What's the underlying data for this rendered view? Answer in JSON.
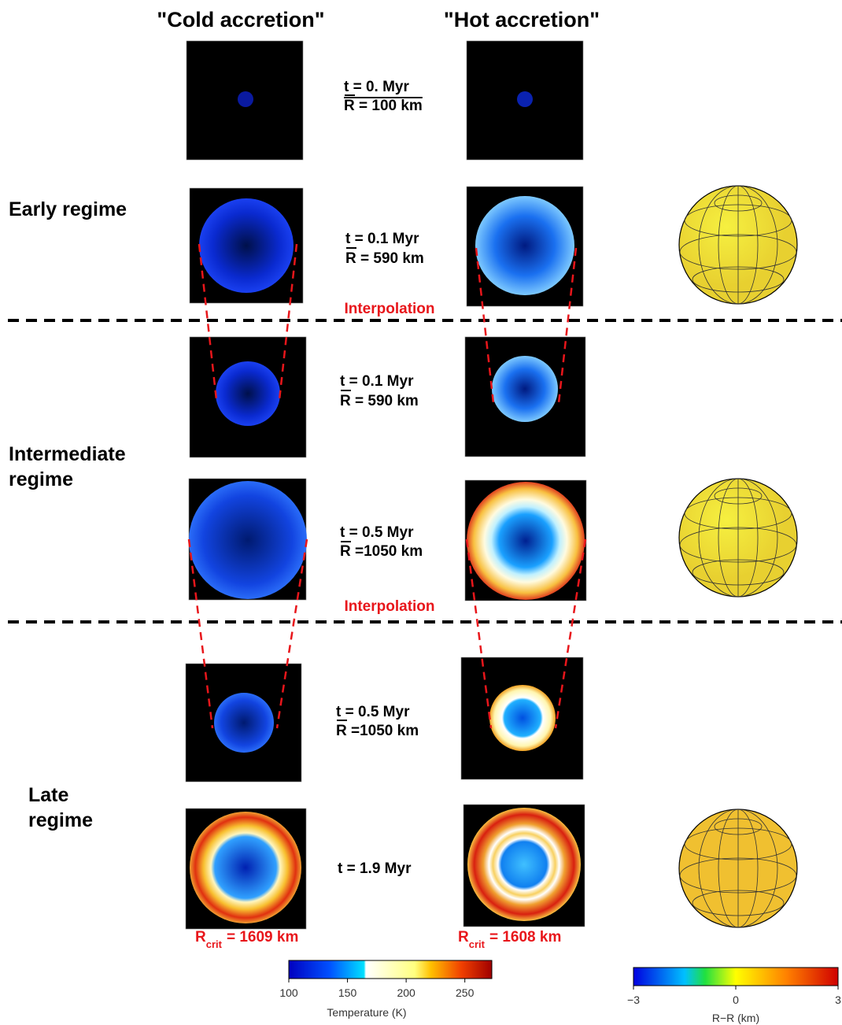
{
  "columns": [
    "\"Cold accretion\"",
    "\"Hot accretion\""
  ],
  "regimes": [
    {
      "lines": [
        "Early regime"
      ]
    },
    {
      "lines": [
        "Intermediate",
        "regime"
      ]
    },
    {
      "lines": [
        "Late",
        "regime"
      ]
    }
  ],
  "stages": [
    {
      "t": "t = 0. Myr",
      "r": "R = 100 km"
    },
    {
      "t": "t = 0.1 Myr",
      "r": "R = 590 km"
    },
    {
      "t": "t = 0.1 Myr",
      "r": "R = 590 km"
    },
    {
      "t": "t = 0.5 Myr",
      "r": "R =1050 km"
    },
    {
      "t": "t = 0.5 Myr",
      "r": "R =1050 km"
    },
    {
      "t": "t = 1.9 Myr"
    }
  ],
  "interpolation": [
    "Interpolation",
    "Interpolation"
  ],
  "critical_radius": [
    {
      "symbol": "R",
      "subscript": "crit",
      "value": "= 1609 km"
    },
    {
      "symbol": "R",
      "subscript": "crit",
      "value": "= 1608 km"
    }
  ],
  "temperature_colorbar": {
    "label": "Temperature (K)",
    "lim": [
      100,
      273
    ],
    "ticks": [
      100,
      150,
      200,
      250
    ]
  },
  "deviation_colorbar": {
    "label": "R−R (km)",
    "lim": [
      -3,
      3
    ],
    "ticks": [
      {
        "value": -3,
        "label": "−3"
      },
      0,
      3
    ]
  }
}
